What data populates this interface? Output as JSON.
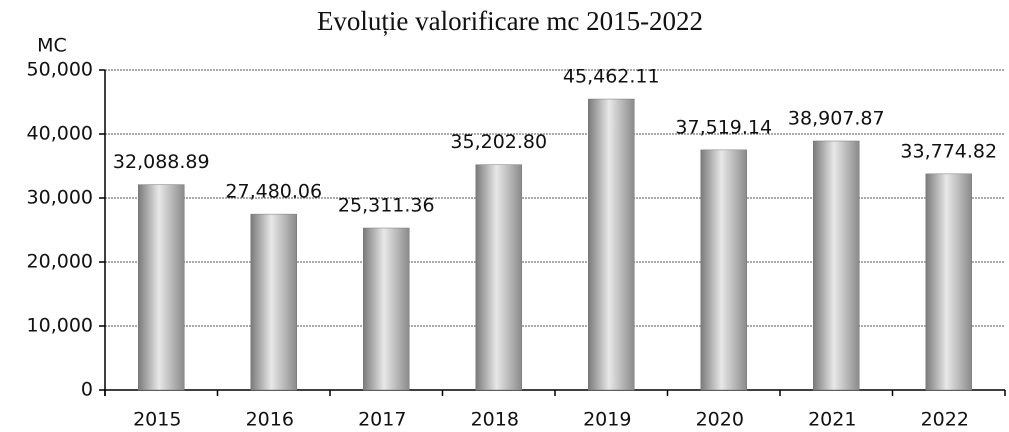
{
  "chart_data": {
    "type": "bar",
    "title": "Evoluție valorificare mc 2015-2022",
    "y_label": "MC",
    "categories": [
      "2015",
      "2016",
      "2017",
      "2018",
      "2019",
      "2020",
      "2021",
      "2022"
    ],
    "values": [
      32088.89,
      27480.06,
      25311.36,
      35202.8,
      45462.11,
      37519.14,
      38907.87,
      33774.82
    ],
    "value_labels": [
      "32,088.89",
      "27,480.06",
      "25,311.36",
      "35,202.80",
      "45,462.11",
      "37,519.14",
      "38,907.87",
      "33,774.82"
    ],
    "color": "#a8a8a8",
    "ylim": [
      0,
      50000
    ],
    "yticks": [
      0,
      {
        "value": 10000,
        "label": "10,000"
      },
      {
        "value": 20000,
        "label": "20,000"
      },
      {
        "value": 30000,
        "label": "30,000"
      },
      {
        "value": 40000,
        "label": "40,000"
      },
      {
        "value": 50000,
        "label": "50,000"
      }
    ],
    "grid": true
  }
}
